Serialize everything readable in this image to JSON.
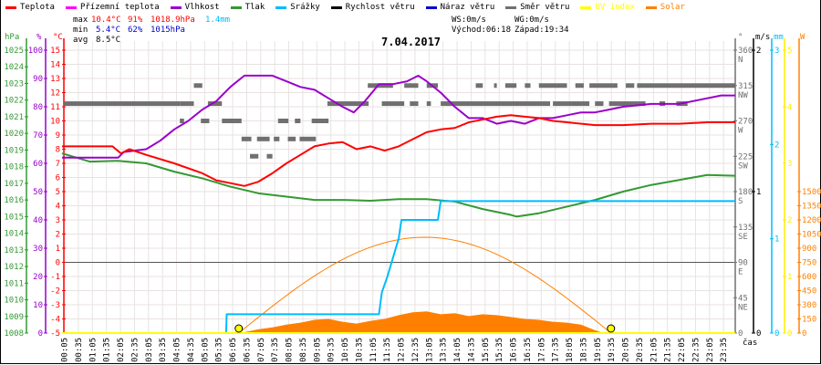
{
  "legend": [
    {
      "label": "Teplota",
      "color": "#ff0000"
    },
    {
      "label": "Přízemní teplota",
      "color": "#ff00ff"
    },
    {
      "label": "Vlhkost",
      "color": "#9900cc"
    },
    {
      "label": "Tlak",
      "color": "#339933"
    },
    {
      "label": "Srážky",
      "color": "#00bbff"
    },
    {
      "label": "Rychlost větru",
      "color": "#000000"
    },
    {
      "label": "Náraz větru",
      "color": "#0000cc"
    },
    {
      "label": "Směr větru",
      "color": "#707070"
    },
    {
      "label": "UV index",
      "color": "#ffff00"
    },
    {
      "label": "Solar",
      "color": "#ff8000"
    }
  ],
  "stats": {
    "max_label": "max",
    "max_temp": "10.4°C",
    "max_hum": "91%",
    "max_press": "1018.9hPa",
    "max_rain": "1.4mm",
    "min_label": "min",
    "min_temp": "5.4°C",
    "min_hum": "62%",
    "min_press": "1015hPa",
    "avg_label": "avg",
    "avg_temp": "8.5°C",
    "ws": "WS:0m/s",
    "wg": "WG:0m/s",
    "sunrise": "Východ:06:18",
    "sunset": "Západ:19:34"
  },
  "chart_data": {
    "type": "line",
    "title": "7.04.2017",
    "xlabel": "čas",
    "x_range_hours": [
      0,
      24
    ],
    "x_ticks": [
      "00:05",
      "00:35",
      "01:05",
      "01:35",
      "02:05",
      "02:35",
      "03:05",
      "03:35",
      "04:05",
      "04:35",
      "05:05",
      "05:35",
      "06:05",
      "06:35",
      "07:05",
      "07:35",
      "08:05",
      "08:35",
      "09:05",
      "09:35",
      "10:05",
      "10:35",
      "11:05",
      "11:35",
      "12:05",
      "12:35",
      "13:05",
      "13:35",
      "14:05",
      "14:35",
      "15:05",
      "15:35",
      "16:05",
      "16:35",
      "17:05",
      "17:35",
      "18:05",
      "18:35",
      "19:05",
      "19:35",
      "20:05",
      "20:35",
      "21:05",
      "21:35",
      "22:05",
      "22:35",
      "23:05",
      "23:35"
    ],
    "axes": {
      "pressure": {
        "unit": "hPa",
        "range": [
          1008,
          1025
        ],
        "ticks": [
          "1008",
          "1009",
          "1010",
          "1011",
          "1012",
          "1013",
          "1014",
          "1015",
          "1016",
          "1017",
          "1018",
          "1019",
          "1020",
          "1021",
          "1022",
          "1023",
          "1024",
          "1025"
        ]
      },
      "humidity": {
        "unit": "%",
        "range": [
          0,
          100
        ],
        "ticks": [
          "0",
          "10",
          "20",
          "30",
          "40",
          "50",
          "60",
          "70",
          "80",
          "90",
          "100"
        ]
      },
      "temperature": {
        "unit": "°C",
        "range": [
          -5,
          15
        ],
        "ticks": [
          "-5",
          "-4",
          "-3",
          "-2",
          "-1",
          "0",
          "1",
          "2",
          "3",
          "4",
          "5",
          "6",
          "7",
          "8",
          "9",
          "10",
          "11",
          "12",
          "13",
          "14",
          "15"
        ]
      },
      "direction": {
        "unit": "°",
        "range": [
          0,
          360
        ],
        "ticks": [
          {
            "v": "0",
            "d": ""
          },
          {
            "v": "45",
            "d": "NE"
          },
          {
            "v": "90",
            "d": "E"
          },
          {
            "v": "135",
            "d": "SE"
          },
          {
            "v": "180",
            "d": "S"
          },
          {
            "v": "225",
            "d": "SW"
          },
          {
            "v": "270",
            "d": "W"
          },
          {
            "v": "315",
            "d": "NW"
          },
          {
            "v": "360",
            "d": "N"
          }
        ]
      },
      "wind": {
        "unit": "m/s",
        "range": [
          0,
          2
        ],
        "ticks": [
          "0",
          "1",
          "2"
        ]
      },
      "rain": {
        "unit": "mm",
        "range": [
          0,
          3
        ],
        "ticks": [
          "0",
          "1",
          "2",
          "3"
        ]
      },
      "uv": {
        "unit": "",
        "range": [
          0,
          5
        ],
        "ticks": [
          "0",
          "1",
          "2",
          "3",
          "4",
          "5"
        ]
      },
      "solar": {
        "unit": "W",
        "range": [
          0,
          3000
        ],
        "ticks": [
          "0",
          "150",
          "300",
          "450",
          "600",
          "750",
          "900",
          "1050",
          "1200",
          "1350",
          "1500"
        ]
      }
    },
    "series": [
      {
        "name": "Teplota",
        "axis": "temperature",
        "color": "#ff0000",
        "points": [
          [
            0,
            8.2
          ],
          [
            1.8,
            8.2
          ],
          [
            2.1,
            7.7
          ],
          [
            2.4,
            8.0
          ],
          [
            3,
            7.6
          ],
          [
            4,
            7.0
          ],
          [
            5,
            6.3
          ],
          [
            5.5,
            5.8
          ],
          [
            6,
            5.6
          ],
          [
            6.5,
            5.4
          ],
          [
            7,
            5.7
          ],
          [
            7.5,
            6.3
          ],
          [
            8,
            7.0
          ],
          [
            8.5,
            7.6
          ],
          [
            9,
            8.2
          ],
          [
            9.5,
            8.4
          ],
          [
            10,
            8.5
          ],
          [
            10.5,
            8.0
          ],
          [
            11,
            8.2
          ],
          [
            11.5,
            7.9
          ],
          [
            12,
            8.2
          ],
          [
            12.5,
            8.7
          ],
          [
            13,
            9.2
          ],
          [
            13.5,
            9.4
          ],
          [
            14,
            9.5
          ],
          [
            14.5,
            9.9
          ],
          [
            15,
            10.1
          ],
          [
            15.5,
            10.3
          ],
          [
            16,
            10.4
          ],
          [
            16.5,
            10.3
          ],
          [
            17,
            10.2
          ],
          [
            17.5,
            10.0
          ],
          [
            18,
            9.9
          ],
          [
            19,
            9.7
          ],
          [
            20,
            9.7
          ],
          [
            21,
            9.8
          ],
          [
            22,
            9.8
          ],
          [
            23,
            9.9
          ],
          [
            24,
            9.9
          ]
        ]
      },
      {
        "name": "Přízemní teplota",
        "axis": "temperature",
        "color": "#ff00ff",
        "points": [
          [
            0,
            0
          ],
          [
            24,
            0
          ]
        ]
      },
      {
        "name": "Vlhkost",
        "axis": "humidity",
        "color": "#9900cc",
        "points": [
          [
            0,
            62
          ],
          [
            2,
            62
          ],
          [
            2.2,
            64
          ],
          [
            3,
            65
          ],
          [
            3.5,
            68
          ],
          [
            4,
            72
          ],
          [
            4.5,
            75
          ],
          [
            5,
            79
          ],
          [
            5.5,
            82
          ],
          [
            6,
            87
          ],
          [
            6.5,
            91
          ],
          [
            7.5,
            91
          ],
          [
            8,
            89
          ],
          [
            8.5,
            87
          ],
          [
            9,
            86
          ],
          [
            9.5,
            83
          ],
          [
            10,
            80
          ],
          [
            10.4,
            78
          ],
          [
            10.8,
            82
          ],
          [
            11.3,
            88
          ],
          [
            11.8,
            88
          ],
          [
            12.3,
            89
          ],
          [
            12.7,
            91
          ],
          [
            13,
            89
          ],
          [
            13.5,
            85
          ],
          [
            14,
            80
          ],
          [
            14.5,
            76
          ],
          [
            15,
            76
          ],
          [
            15.5,
            74
          ],
          [
            16,
            75
          ],
          [
            16.5,
            74
          ],
          [
            17,
            76
          ],
          [
            17.5,
            76
          ],
          [
            18,
            77
          ],
          [
            18.5,
            78
          ],
          [
            19,
            78
          ],
          [
            19.5,
            79
          ],
          [
            20,
            80
          ],
          [
            21,
            81
          ],
          [
            22,
            81
          ],
          [
            22.5,
            82
          ],
          [
            23.5,
            84
          ],
          [
            24,
            84
          ]
        ]
      },
      {
        "name": "Tlak",
        "axis": "pressure",
        "color": "#339933",
        "points": [
          [
            0,
            1018.8
          ],
          [
            1,
            1018.3
          ],
          [
            2,
            1018.35
          ],
          [
            3,
            1018.2
          ],
          [
            4,
            1017.7
          ],
          [
            5,
            1017.3
          ],
          [
            6,
            1016.8
          ],
          [
            7,
            1016.4
          ],
          [
            8,
            1016.2
          ],
          [
            9,
            1016.0
          ],
          [
            10,
            1016.0
          ],
          [
            11,
            1015.95
          ],
          [
            12,
            1016.05
          ],
          [
            13,
            1016.05
          ],
          [
            14,
            1015.9
          ],
          [
            15,
            1015.45
          ],
          [
            16,
            1015.1
          ],
          [
            16.2,
            1015.0
          ],
          [
            17,
            1015.2
          ],
          [
            18,
            1015.6
          ],
          [
            19,
            1016.0
          ],
          [
            20,
            1016.5
          ],
          [
            21,
            1016.9
          ],
          [
            22,
            1017.2
          ],
          [
            23,
            1017.5
          ],
          [
            24,
            1017.45
          ]
        ]
      },
      {
        "name": "Srážky",
        "axis": "rain",
        "color": "#00bbff",
        "points": [
          [
            0,
            0
          ],
          [
            5.85,
            0
          ],
          [
            5.87,
            0.2
          ],
          [
            11.3,
            0.2
          ],
          [
            11.4,
            0.43
          ],
          [
            11.6,
            0.6
          ],
          [
            11.8,
            0.8
          ],
          [
            12.0,
            1.0
          ],
          [
            12.1,
            1.2
          ],
          [
            13.4,
            1.2
          ],
          [
            13.5,
            1.4
          ],
          [
            24,
            1.4
          ]
        ]
      },
      {
        "name": "Rychlost větru",
        "axis": "wind",
        "color": "#000000",
        "points": [
          [
            0,
            0
          ],
          [
            24,
            0
          ]
        ]
      },
      {
        "name": "Náraz větru",
        "axis": "wind",
        "color": "#0000cc",
        "points": [
          [
            0,
            0
          ],
          [
            24,
            0
          ]
        ]
      },
      {
        "name": "UV index",
        "axis": "uv",
        "color": "#ffff00",
        "points": [
          [
            0,
            0
          ],
          [
            24,
            0
          ]
        ]
      },
      {
        "name": "Solar",
        "axis": "solar",
        "color": "#ff8000",
        "type": "area",
        "points": [
          [
            6.3,
            0
          ],
          [
            6.5,
            10
          ],
          [
            7,
            40
          ],
          [
            7.5,
            60
          ],
          [
            8,
            90
          ],
          [
            8.5,
            110
          ],
          [
            9,
            140
          ],
          [
            9.5,
            150
          ],
          [
            10,
            120
          ],
          [
            10.5,
            100
          ],
          [
            11,
            130
          ],
          [
            11.5,
            150
          ],
          [
            12,
            190
          ],
          [
            12.5,
            220
          ],
          [
            13,
            230
          ],
          [
            13.5,
            200
          ],
          [
            14,
            210
          ],
          [
            14.5,
            180
          ],
          [
            15,
            200
          ],
          [
            15.5,
            190
          ],
          [
            16,
            170
          ],
          [
            16.5,
            150
          ],
          [
            17,
            140
          ],
          [
            17.5,
            120
          ],
          [
            18,
            110
          ],
          [
            18.5,
            90
          ],
          [
            19,
            30
          ],
          [
            19.3,
            0
          ]
        ]
      },
      {
        "name": "Solar max",
        "axis": "solar",
        "color": "#ff8000",
        "peak": 1016,
        "start": 6.3,
        "end": 19.57
      }
    ],
    "wind_direction_segments": [
      [
        0.07,
        4.2,
        292
      ],
      [
        4.2,
        4.7,
        292
      ],
      [
        5.2,
        5.7,
        292
      ],
      [
        4.7,
        5.0,
        315
      ],
      [
        4.2,
        4.35,
        270
      ],
      [
        4.95,
        5.25,
        270
      ],
      [
        5.7,
        6.4,
        270
      ],
      [
        7.7,
        8.05,
        270
      ],
      [
        6.4,
        6.75,
        247
      ],
      [
        6.95,
        7.4,
        247
      ],
      [
        7.55,
        7.75,
        247
      ],
      [
        6.7,
        7.0,
        225
      ],
      [
        7.3,
        7.5,
        225
      ],
      [
        7.87,
        8.07,
        270
      ],
      [
        8.3,
        8.5,
        270
      ],
      [
        8.9,
        9.5,
        270
      ],
      [
        8.05,
        8.33,
        247
      ],
      [
        8.47,
        9.05,
        247
      ],
      [
        9.46,
        10.93,
        292
      ],
      [
        11.4,
        12.2,
        292
      ],
      [
        12.4,
        12.7,
        292
      ],
      [
        13.0,
        13.15,
        292
      ],
      [
        13.5,
        17.4,
        292
      ],
      [
        17.5,
        18.8,
        292
      ],
      [
        19.0,
        19.3,
        292
      ],
      [
        19.5,
        20.8,
        292
      ],
      [
        21.3,
        21.5,
        292
      ],
      [
        21.9,
        22.3,
        292
      ],
      [
        10.9,
        11.8,
        315
      ],
      [
        12.2,
        12.7,
        315
      ],
      [
        13.0,
        13.4,
        315
      ],
      [
        14.75,
        15.0,
        315
      ],
      [
        15.4,
        15.5,
        315
      ],
      [
        15.8,
        16.2,
        315
      ],
      [
        16.5,
        16.7,
        315
      ],
      [
        17.0,
        18.0,
        315
      ],
      [
        18.3,
        18.6,
        315
      ],
      [
        18.8,
        19.8,
        315
      ],
      [
        20.1,
        20.4,
        315
      ],
      [
        20.5,
        24,
        315
      ]
    ],
    "sun_markers": [
      {
        "label": "sunrise",
        "t": 6.3
      },
      {
        "label": "sunset",
        "t": 19.57
      }
    ]
  }
}
